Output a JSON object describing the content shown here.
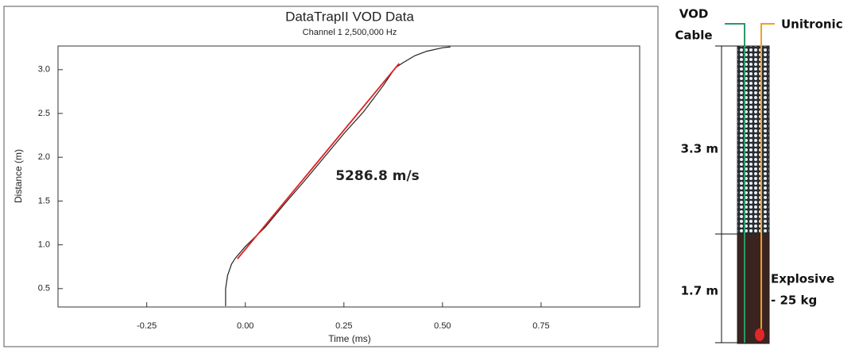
{
  "chart_data": {
    "type": "line",
    "title": "DataTrapII VOD Data",
    "subtitle": "Channel 1  2,500,000 Hz",
    "x_label": "Time (ms)",
    "y_label": "Distance (m)",
    "xlim": [
      -0.475,
      1.0
    ],
    "ylim": [
      0.29,
      3.27
    ],
    "xticks": [
      {
        "value": -0.25,
        "label": "-0.25"
      },
      {
        "value": 0,
        "label": "0.00"
      },
      {
        "value": 0.25,
        "label": "0.25"
      },
      {
        "value": 0.5,
        "label": "0.50"
      },
      {
        "value": 0.75,
        "label": "0.75"
      }
    ],
    "yticks": [
      0.5,
      {
        "value": 1,
        "label": "1.0"
      },
      1.5,
      {
        "value": 2,
        "label": "2.0"
      },
      2.5,
      {
        "value": 3,
        "label": "3.0"
      }
    ],
    "grid": false,
    "series": [
      {
        "color": "#222222",
        "x": [
          -0.05,
          -0.05,
          -0.045,
          -0.035,
          -0.025,
          0,
          0.05,
          0.1,
          0.15,
          0.2,
          0.25,
          0.3,
          0.35,
          0.38,
          0.4,
          0.43,
          0.46,
          0.5,
          0.52
        ],
        "values": [
          0.3,
          0.5,
          0.65,
          0.78,
          0.85,
          0.98,
          1.2,
          1.47,
          1.73,
          2.0,
          2.27,
          2.52,
          2.82,
          3.02,
          3.08,
          3.16,
          3.21,
          3.25,
          3.26
        ]
      },
      {
        "color": "#e02020",
        "x": [
          -0.02,
          0.39
        ],
        "values": [
          0.84,
          3.07
        ]
      }
    ],
    "annotations": [
      {
        "text": "5286.8 m/s"
      }
    ]
  },
  "diagram": {
    "vod_cable": [
      "VOD",
      "Cable"
    ],
    "unitronic": "Unitronic",
    "stemming_length": "3.3 m",
    "charge_length": "1.7 m",
    "explosive": [
      "Explosive",
      "- 25 kg"
    ]
  }
}
